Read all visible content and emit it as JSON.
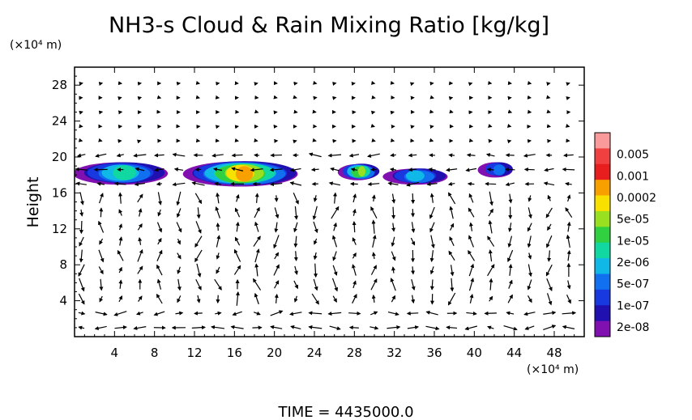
{
  "chart_data": {
    "type": "heatmap",
    "title": "NH3-s Cloud & Rain Mixing Ratio [kg/kg]",
    "ylabel": "Height",
    "y_unit": "(×10⁴ m)",
    "x_unit": "(×10⁴ m)",
    "xlim": [
      0,
      51
    ],
    "ylim": [
      0,
      30
    ],
    "x_ticks": [
      "4",
      "8",
      "12",
      "16",
      "20",
      "24",
      "28",
      "32",
      "36",
      "40",
      "44",
      "48"
    ],
    "x_tick_values": [
      4,
      8,
      12,
      16,
      20,
      24,
      28,
      32,
      36,
      40,
      44,
      48
    ],
    "y_ticks": [
      "4",
      "8",
      "12",
      "16",
      "20",
      "24",
      "28"
    ],
    "y_tick_values": [
      4,
      8,
      12,
      16,
      20,
      24,
      28
    ],
    "colorbar": {
      "labels": [
        "0.005",
        "0.001",
        "0.0002",
        "5e-05",
        "1e-05",
        "2e-06",
        "5e-07",
        "1e-07",
        "2e-08"
      ],
      "colors": [
        "#fa9a9a",
        "#f04040",
        "#e81e1e",
        "#f8a000",
        "#f8e000",
        "#98e020",
        "#30d040",
        "#10d8a0",
        "#10b8e8",
        "#1070f0",
        "#1838e0",
        "#2010b0",
        "#8010b0"
      ]
    },
    "cloud_regions": [
      {
        "x": [
          0,
          9.5
        ],
        "y": [
          17.0,
          19.5
        ],
        "peak": "5e-06"
      },
      {
        "x": [
          11,
          22.5
        ],
        "y": [
          16.8,
          19.6
        ],
        "peak": "0.0002"
      },
      {
        "x": [
          26.5,
          30.5
        ],
        "y": [
          17.5,
          19.3
        ],
        "peak": "5e-05"
      },
      {
        "x": [
          31,
          37.5
        ],
        "y": [
          17.0,
          18.8
        ],
        "peak": "2e-06"
      },
      {
        "x": [
          40.5,
          44
        ],
        "y": [
          17.8,
          19.5
        ],
        "peak": "5e-07"
      }
    ],
    "vectors": "wind field (u, w) shown as arrows on a regular grid"
  },
  "footer": {
    "time_label": "TIME = 4435000.0"
  }
}
